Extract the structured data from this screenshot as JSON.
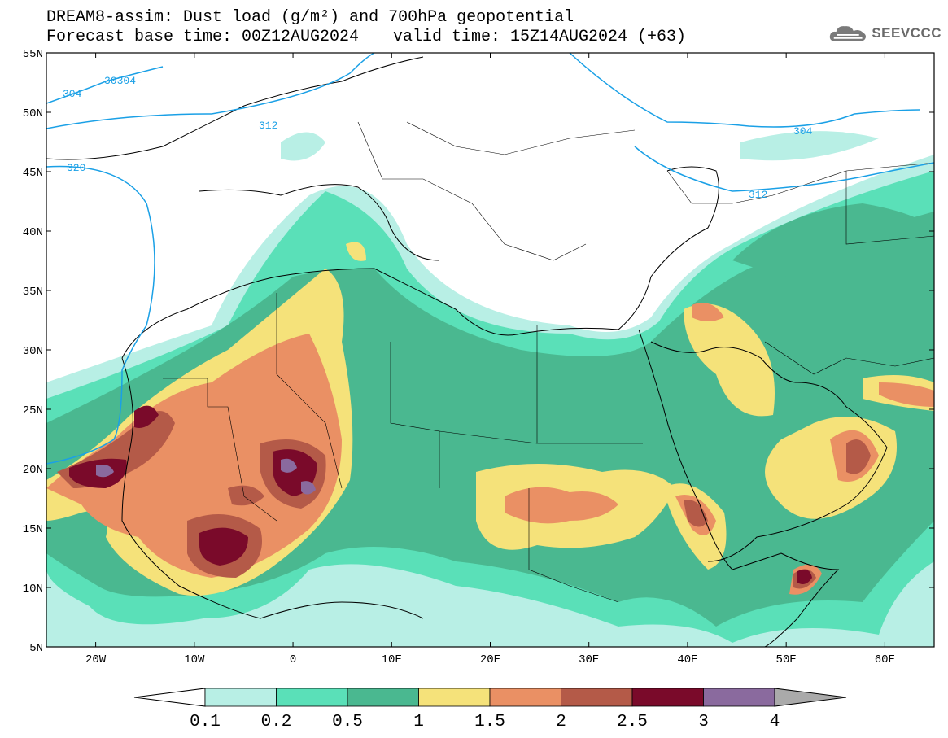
{
  "title": {
    "line1": "DREAM8-assim: Dust load (g/m²) and 700hPa geopotential",
    "line2_base": "Forecast base time: 00Z12AUG2024",
    "line2_valid": "valid time: 15Z14AUG2024 (+63)"
  },
  "logo": {
    "text": "SEEVCCC",
    "icon": "cloud-icon"
  },
  "map": {
    "lat_ticks": [
      "55N",
      "50N",
      "45N",
      "40N",
      "35N",
      "30N",
      "25N",
      "20N",
      "15N",
      "10N",
      "5N"
    ],
    "lon_ticks": [
      "20W",
      "10W",
      "0",
      "10E",
      "20E",
      "30E",
      "40E",
      "50E",
      "60E"
    ],
    "lat_range": [
      5,
      55
    ],
    "lon_range": [
      -25,
      65
    ],
    "contours": [
      {
        "label": "304",
        "color": "#1aa0e6"
      },
      {
        "label": "30304-",
        "color": "#1aa0e6"
      },
      {
        "label": "312",
        "color": "#1aa0e6"
      },
      {
        "label": "320",
        "color": "#1aa0e6"
      },
      {
        "label": "304",
        "color": "#1aa0e6"
      },
      {
        "label": "312",
        "color": "#1aa0e6"
      }
    ]
  },
  "colorbar": {
    "labels": [
      "0.1",
      "0.2",
      "0.5",
      "1",
      "1.5",
      "2",
      "2.5",
      "3",
      "4"
    ],
    "colors": [
      "#b8efe5",
      "#5ae0b8",
      "#4ab890",
      "#f5e27a",
      "#ea9064",
      "#b45a48",
      "#7a0a2a",
      "#8a6a9e"
    ],
    "over_color": "#aaaaaa",
    "under_color": "#ffffff"
  }
}
